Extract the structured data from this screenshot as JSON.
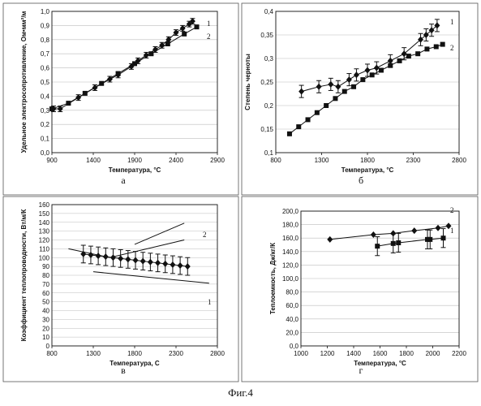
{
  "caption": "Фиг.4",
  "colors": {
    "ink": "#111111",
    "grid": "#bdbdbd",
    "frame": "#555555"
  },
  "chart_data": [
    {
      "panel": "а",
      "type": "line",
      "xlabel": "Температура, °C",
      "ylabel": "Удельное электросопротивление, Ом•мм²/м",
      "xlim": [
        900,
        2900
      ],
      "ylim": [
        0,
        1.0
      ],
      "xticks": [
        900,
        1400,
        1900,
        2400,
        2900
      ],
      "xtick_labels": [
        "900",
        "1400",
        "1900",
        "2400",
        "2900"
      ],
      "yticks": [
        0,
        0.1,
        0.2,
        0.3,
        0.4,
        0.5,
        0.6,
        0.7,
        0.8,
        0.9,
        1.0
      ],
      "ytick_labels": [
        "0,0",
        "0,1",
        "0,2",
        "0,3",
        "0,4",
        "0,5",
        "0,6",
        "0,7",
        "0,8",
        "0,9",
        "1,0"
      ],
      "grid": "horizontal",
      "series": [
        {
          "label": "1",
          "marker": "diamond",
          "errorbars": true,
          "x": [
            920,
            1000,
            1220,
            1420,
            1600,
            1700,
            1860,
            1940,
            2040,
            2150,
            2230,
            2310,
            2400,
            2480,
            2560,
            2600
          ],
          "y": [
            0.31,
            0.31,
            0.39,
            0.46,
            0.52,
            0.55,
            0.61,
            0.65,
            0.69,
            0.73,
            0.76,
            0.8,
            0.85,
            0.88,
            0.91,
            0.93
          ],
          "err": 0.02
        },
        {
          "label": "2",
          "marker": "square",
          "errorbars": false,
          "x": [
            900,
            1100,
            1300,
            1500,
            1700,
            1900,
            2100,
            2300,
            2500,
            2650
          ],
          "y": [
            0.31,
            0.35,
            0.42,
            0.49,
            0.56,
            0.63,
            0.7,
            0.77,
            0.84,
            0.89
          ]
        }
      ]
    },
    {
      "panel": "б",
      "type": "line",
      "xlabel": "Температура, °C",
      "ylabel": "Степень черноты",
      "xlim": [
        800,
        2800
      ],
      "ylim": [
        0.1,
        0.4
      ],
      "xticks": [
        800,
        1300,
        1800,
        2300,
        2800
      ],
      "xtick_labels": [
        "800",
        "1300",
        "1800",
        "2300",
        "2800"
      ],
      "yticks": [
        0.1,
        0.15,
        0.2,
        0.25,
        0.3,
        0.35,
        0.4
      ],
      "ytick_labels": [
        "0,1",
        "0,15",
        "0,2",
        "0,25",
        "0,3",
        "0,35",
        "0,4"
      ],
      "grid": "horizontal",
      "series": [
        {
          "label": "1",
          "marker": "diamond",
          "errorbars": true,
          "x": [
            1080,
            1270,
            1400,
            1480,
            1600,
            1680,
            1800,
            1900,
            2050,
            2200,
            2380,
            2440,
            2500,
            2560
          ],
          "y": [
            0.23,
            0.24,
            0.245,
            0.24,
            0.255,
            0.265,
            0.275,
            0.28,
            0.295,
            0.31,
            0.34,
            0.35,
            0.36,
            0.37
          ],
          "err": 0.013
        },
        {
          "label": "2",
          "marker": "square",
          "errorbars": false,
          "x": [
            950,
            1050,
            1150,
            1250,
            1350,
            1450,
            1550,
            1650,
            1750,
            1850,
            1950,
            2050,
            2150,
            2250,
            2350,
            2450,
            2550,
            2620
          ],
          "y": [
            0.14,
            0.155,
            0.17,
            0.185,
            0.2,
            0.215,
            0.23,
            0.24,
            0.255,
            0.265,
            0.275,
            0.285,
            0.295,
            0.305,
            0.31,
            0.32,
            0.325,
            0.33
          ]
        }
      ]
    },
    {
      "panel": "в",
      "type": "line",
      "xlabel": "Температура, С",
      "ylabel": "Коэффициент теплопроводности, Вт/м/К",
      "xlim": [
        800,
        2800
      ],
      "ylim": [
        0,
        160
      ],
      "xticks": [
        800,
        1300,
        1800,
        2300,
        2800
      ],
      "xtick_labels": [
        "800",
        "1300",
        "1800",
        "2300",
        "2800"
      ],
      "yticks": [
        0,
        10,
        20,
        30,
        40,
        50,
        60,
        70,
        80,
        90,
        100,
        110,
        120,
        130,
        140,
        150,
        160
      ],
      "ytick_labels": [
        "0",
        "10",
        "20",
        "30",
        "40",
        "50",
        "60",
        "70",
        "80",
        "90",
        "100",
        "110",
        "120",
        "130",
        "140",
        "150",
        "160"
      ],
      "grid": "horizontal",
      "series": [
        {
          "label": "1",
          "marker": "diamond",
          "errorbars": true,
          "x": [
            1180,
            1270,
            1360,
            1450,
            1540,
            1630,
            1720,
            1810,
            1900,
            1990,
            2080,
            2170,
            2260,
            2350,
            2440
          ],
          "y": [
            104,
            103,
            102,
            101,
            100,
            99,
            98,
            97,
            96,
            95,
            94,
            93,
            92,
            91,
            90
          ],
          "err": 10
        }
      ],
      "lines": [
        {
          "label": "2",
          "x": [
            1800,
            2400
          ],
          "y": [
            115,
            139
          ]
        },
        {
          "x": [
            1000,
            1500,
            2400
          ],
          "y": [
            110,
            100,
            120
          ]
        },
        {
          "x": [
            1300,
            2700
          ],
          "y": [
            84,
            71
          ]
        }
      ]
    },
    {
      "panel": "г",
      "type": "line",
      "xlabel": "Температура, °C",
      "ylabel": "Теплоемкость, Дж/кг/К",
      "xlim": [
        1000,
        2200
      ],
      "ylim": [
        0,
        200
      ],
      "xticks": [
        1000,
        1200,
        1400,
        1600,
        1800,
        2000,
        2200
      ],
      "xtick_labels": [
        "1000",
        "1200",
        "1400",
        "1600",
        "1800",
        "2000",
        "2200"
      ],
      "yticks": [
        0,
        20,
        40,
        60,
        80,
        100,
        120,
        140,
        160,
        180,
        200
      ],
      "ytick_labels": [
        "0,0",
        "20,0",
        "40,0",
        "60,0",
        "80,0",
        "100,0",
        "120,0",
        "140,0",
        "160,0",
        "180,0",
        "200,0"
      ],
      "grid": "horizontal",
      "series": [
        {
          "label": "1",
          "marker": "square",
          "errorbars": true,
          "x": [
            1580,
            1700,
            1740,
            1960,
            1980,
            2080
          ],
          "y": [
            148,
            152,
            153,
            158,
            158,
            160
          ],
          "err": 14
        },
        {
          "label": "2",
          "marker": "diamond",
          "errorbars": false,
          "x": [
            1220,
            1550,
            1700,
            1860,
            2040,
            2120
          ],
          "y": [
            158,
            165,
            167,
            171,
            175,
            178
          ]
        }
      ]
    }
  ],
  "panels": [
    {
      "letter": "а",
      "box": 0
    },
    {
      "letter": "б",
      "box": 1
    },
    {
      "letter": "в",
      "box": 2
    },
    {
      "letter": "г",
      "box": 3
    }
  ]
}
